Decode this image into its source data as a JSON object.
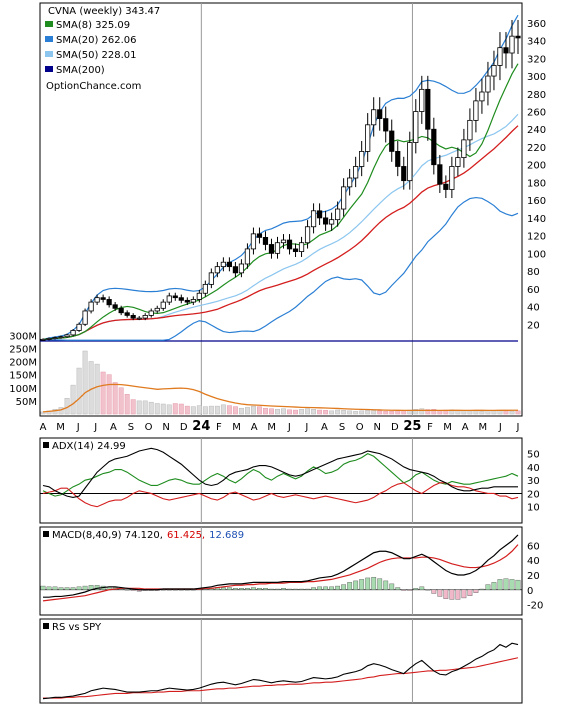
{
  "chart_data": {
    "type": "financial",
    "x_months": [
      "A",
      "M",
      "J",
      "J",
      "A",
      "S",
      "O",
      "N",
      "D",
      "24",
      "F",
      "M",
      "A",
      "M",
      "J",
      "J",
      "A",
      "S",
      "O",
      "N",
      "D",
      "25",
      "F",
      "M",
      "A",
      "M",
      "J",
      "J"
    ],
    "price": {
      "title": "CVNA (weekly) 343.47",
      "watermark": "OptionChance.com",
      "ylim": [
        0,
        370
      ],
      "yticks": [
        20,
        40,
        60,
        80,
        100,
        120,
        140,
        160,
        180,
        200,
        220,
        240,
        260,
        280,
        300,
        320,
        340,
        360
      ],
      "legend": [
        {
          "label": "SMA(8) 325.09",
          "color": "#1e8c1e"
        },
        {
          "label": "SMA(20) 262.06",
          "color": "#2a7fd4"
        },
        {
          "label": "SMA(50) 228.01",
          "color": "#8cc6ef"
        },
        {
          "label": "SMA(200)",
          "color": "#00008b"
        }
      ],
      "close": [
        3,
        4,
        5,
        6,
        8,
        13,
        20,
        35,
        45,
        50,
        48,
        42,
        38,
        33,
        30,
        27,
        27,
        30,
        35,
        38,
        45,
        52,
        50,
        47,
        45,
        48,
        55,
        65,
        78,
        85,
        90,
        85,
        78,
        88,
        105,
        122,
        118,
        110,
        100,
        112,
        115,
        105,
        102,
        112,
        130,
        148,
        140,
        133,
        138,
        150,
        175,
        185,
        198,
        215,
        245,
        262,
        252,
        238,
        215,
        198,
        182,
        225,
        260,
        285,
        240,
        200,
        178,
        172,
        198,
        208,
        228,
        250,
        272,
        282,
        300,
        312,
        332,
        326,
        345,
        343
      ],
      "sma8": [],
      "sma20": [],
      "sma50": [],
      "sma200_level": 0,
      "volume_labels": [
        "300M",
        "250M",
        "200M",
        "150M",
        "100M",
        "50M"
      ],
      "volume_max": 320,
      "volume": [
        8,
        12,
        18,
        25,
        60,
        110,
        175,
        240,
        200,
        190,
        160,
        150,
        120,
        100,
        75,
        55,
        50,
        50,
        45,
        40,
        38,
        35,
        40,
        38,
        30,
        28,
        32,
        28,
        30,
        30,
        35,
        32,
        28,
        22,
        25,
        30,
        28,
        22,
        20,
        18,
        20,
        16,
        15,
        18,
        20,
        18,
        15,
        14,
        12,
        15,
        14,
        12,
        10,
        12,
        14,
        13,
        12,
        10,
        10,
        12,
        14,
        15,
        18,
        20,
        17,
        18,
        14,
        15,
        16,
        14,
        13,
        12,
        12,
        11,
        13,
        12,
        14,
        12,
        11,
        12
      ]
    },
    "adx": {
      "label": "ADX(14) 24.99",
      "ylim": [
        0,
        58
      ],
      "yticks": [
        10,
        20,
        30,
        40,
        50
      ],
      "adx": [
        26,
        25,
        22,
        20,
        18,
        17,
        18,
        24,
        30,
        36,
        40,
        44,
        46,
        47,
        48,
        50,
        52,
        53,
        54,
        53,
        51,
        48,
        45,
        42,
        38,
        34,
        30,
        27,
        26,
        27,
        30,
        34,
        36,
        37,
        38,
        40,
        41,
        41,
        40,
        38,
        36,
        34,
        33,
        34,
        36,
        38,
        40,
        42,
        44,
        46,
        47,
        48,
        49,
        50,
        52,
        51,
        50,
        48,
        46,
        43,
        40,
        38,
        37,
        36,
        35,
        33,
        30,
        28,
        25,
        23,
        22,
        22,
        23,
        24,
        24,
        25,
        25,
        25,
        25,
        25
      ],
      "pdi": [
        22,
        20,
        18,
        19,
        22,
        25,
        27,
        30,
        31,
        33,
        35,
        36,
        38,
        38,
        36,
        33,
        30,
        28,
        26,
        26,
        28,
        30,
        31,
        30,
        28,
        27,
        27,
        30,
        33,
        35,
        33,
        30,
        28,
        31,
        35,
        38,
        36,
        32,
        30,
        33,
        35,
        33,
        31,
        33,
        37,
        40,
        38,
        35,
        36,
        38,
        42,
        44,
        45,
        47,
        50,
        48,
        44,
        40,
        36,
        32,
        28,
        30,
        34,
        36,
        33,
        30,
        28,
        27,
        29,
        28,
        27,
        27,
        28,
        29,
        30,
        31,
        32,
        33,
        35,
        33
      ],
      "ndi": [
        20,
        21,
        22,
        24,
        24,
        20,
        16,
        13,
        11,
        10,
        12,
        14,
        15,
        15,
        17,
        20,
        22,
        21,
        20,
        18,
        16,
        15,
        16,
        17,
        18,
        19,
        20,
        18,
        16,
        15,
        17,
        20,
        21,
        19,
        17,
        15,
        16,
        18,
        20,
        18,
        17,
        18,
        19,
        18,
        17,
        16,
        17,
        18,
        17,
        16,
        15,
        14,
        13,
        14,
        15,
        17,
        20,
        22,
        25,
        27,
        28,
        25,
        22,
        20,
        23,
        26,
        28,
        28,
        26,
        25,
        25,
        24,
        22,
        21,
        20,
        20,
        18,
        18,
        16,
        17
      ]
    },
    "macd": {
      "label": "MACD(8,40,9) 74.120,",
      "signal_label": "61.425,",
      "hist_label": "12.689",
      "ylim": [
        -30,
        78
      ],
      "yticks": [
        -20,
        0,
        20,
        40,
        60
      ],
      "macd": [
        -10,
        -10,
        -9,
        -9,
        -8,
        -7,
        -5,
        -3,
        0,
        2,
        3,
        4,
        4,
        3,
        2,
        1,
        0,
        0,
        0,
        0,
        1,
        1,
        1,
        1,
        1,
        1,
        2,
        3,
        4,
        6,
        7,
        8,
        8,
        8,
        9,
        10,
        10,
        10,
        10,
        10,
        11,
        11,
        11,
        11,
        12,
        14,
        16,
        17,
        18,
        21,
        25,
        30,
        35,
        40,
        45,
        50,
        52,
        52,
        50,
        46,
        42,
        42,
        45,
        48,
        44,
        38,
        32,
        26,
        22,
        20,
        20,
        22,
        26,
        32,
        40,
        46,
        54,
        60,
        66,
        74
      ],
      "signal": [
        -15,
        -14,
        -13,
        -12,
        -11,
        -10,
        -9,
        -8,
        -6,
        -4,
        -2,
        0,
        1,
        2,
        2,
        2,
        2,
        1,
        1,
        1,
        1,
        1,
        1,
        1,
        1,
        1,
        1,
        2,
        2,
        3,
        4,
        5,
        6,
        6,
        7,
        7,
        8,
        8,
        9,
        9,
        9,
        10,
        10,
        10,
        11,
        11,
        12,
        13,
        14,
        16,
        18,
        20,
        23,
        26,
        29,
        33,
        37,
        40,
        42,
        43,
        43,
        43,
        43,
        44,
        44,
        43,
        41,
        38,
        35,
        33,
        31,
        30,
        30,
        31,
        33,
        36,
        40,
        45,
        52,
        61
      ],
      "histogram": [
        5,
        4,
        4,
        3,
        3,
        3,
        4,
        5,
        6,
        6,
        5,
        4,
        3,
        1,
        0,
        -1,
        -2,
        -1,
        -1,
        -1,
        0,
        0,
        0,
        0,
        0,
        0,
        1,
        1,
        2,
        3,
        3,
        3,
        2,
        2,
        2,
        3,
        2,
        2,
        1,
        1,
        2,
        1,
        1,
        1,
        1,
        3,
        4,
        4,
        4,
        5,
        7,
        10,
        12,
        14,
        16,
        17,
        15,
        12,
        8,
        3,
        -1,
        -1,
        2,
        4,
        0,
        -5,
        -9,
        -12,
        -13,
        -13,
        -11,
        -8,
        -4,
        1,
        7,
        10,
        14,
        15,
        14,
        13
      ]
    },
    "rs": {
      "label": "RS vs SPY",
      "ylim": [
        0,
        100
      ],
      "rs": [
        2,
        3,
        4,
        4,
        5,
        6,
        8,
        10,
        14,
        16,
        18,
        17,
        16,
        14,
        12,
        12,
        12,
        13,
        14,
        14,
        16,
        18,
        17,
        16,
        15,
        16,
        18,
        21,
        24,
        26,
        27,
        25,
        23,
        25,
        28,
        31,
        30,
        28,
        26,
        28,
        29,
        28,
        27,
        28,
        31,
        34,
        33,
        32,
        33,
        35,
        39,
        41,
        43,
        46,
        52,
        55,
        53,
        50,
        46,
        43,
        40,
        48,
        55,
        60,
        52,
        44,
        39,
        38,
        43,
        46,
        51,
        56,
        62,
        66,
        72,
        76,
        84,
        80,
        86,
        84
      ],
      "rs_ma": [
        3,
        3,
        3,
        3,
        4,
        4,
        5,
        5,
        6,
        7,
        8,
        9,
        10,
        10,
        10,
        11,
        11,
        11,
        11,
        12,
        12,
        13,
        13,
        13,
        14,
        14,
        14,
        15,
        16,
        17,
        17,
        18,
        18,
        19,
        20,
        21,
        21,
        22,
        22,
        23,
        23,
        24,
        24,
        24,
        25,
        26,
        26,
        27,
        27,
        28,
        29,
        30,
        31,
        32,
        34,
        35,
        37,
        38,
        39,
        40,
        40,
        41,
        42,
        43,
        44,
        44,
        45,
        45,
        46,
        47,
        48,
        49,
        50,
        52,
        54,
        56,
        58,
        60,
        62,
        64
      ]
    }
  }
}
